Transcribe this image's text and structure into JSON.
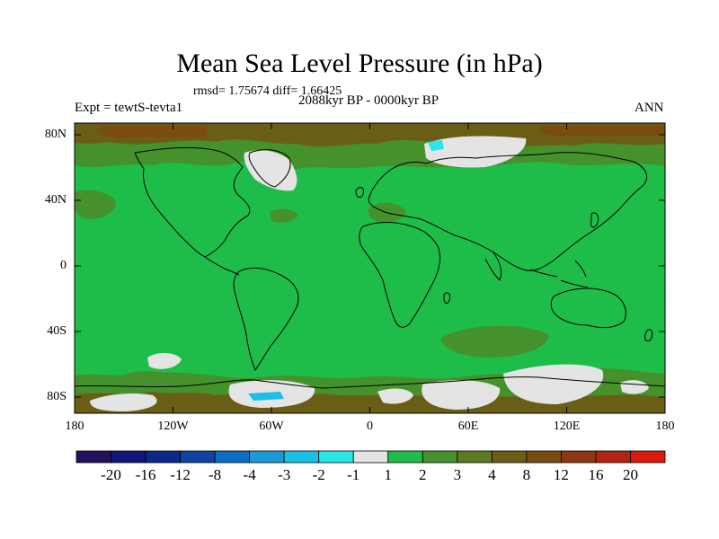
{
  "title": "Mean Sea Level Pressure (in hPa)",
  "stats": "rmsd= 1.75674 diff= 1.66425",
  "period": "2088kyr BP - 0000kyr BP",
  "experiment": "Expt = tewtS-tevta1",
  "season": "ANN",
  "lat_labels": [
    "80N",
    "40N",
    "0",
    "40S",
    "80S"
  ],
  "lon_labels": [
    "180",
    "120W",
    "60W",
    "0",
    "60E",
    "120E",
    "180"
  ],
  "colorbar": {
    "labels": [
      "-20",
      "-16",
      "-12",
      "-8",
      "-4",
      "-3",
      "-2",
      "-1",
      "1",
      "2",
      "3",
      "4",
      "8",
      "12",
      "16",
      "20"
    ],
    "colors": [
      "#24115e",
      "#121678",
      "#0a2a8a",
      "#0e44a0",
      "#0a6ec4",
      "#1a9ad8",
      "#1bc0e6",
      "#2ae5ea",
      "#e4e4e4",
      "#1ebd4a",
      "#45912c",
      "#5e7a20",
      "#6a5e16",
      "#7a4c10",
      "#8c3810",
      "#b02410",
      "#d81a08"
    ]
  },
  "colors": {
    "ocean_base": "#1ebd4a",
    "land_outline": "#000000",
    "high_polar": "#6a5e16",
    "mid_brown": "#5e7a20",
    "olive": "#45912c",
    "neutral": "#e4e4e4",
    "cyan": "#2ae5ea"
  }
}
